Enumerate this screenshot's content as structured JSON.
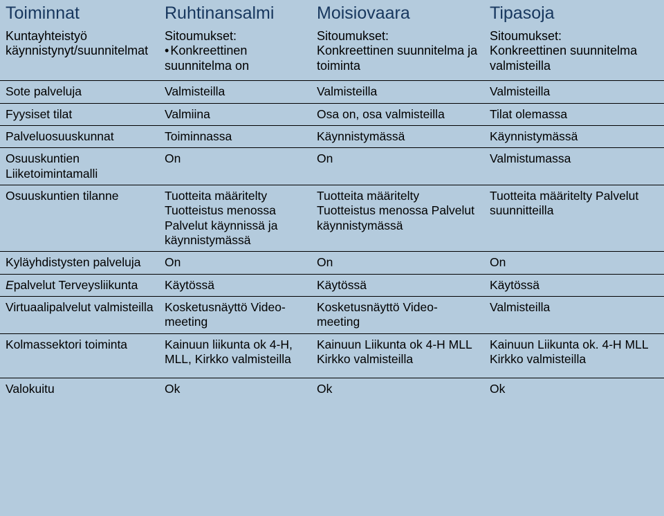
{
  "background_color": "#b4cbdd",
  "header_text_color": "#17375e",
  "border_color": "#000000",
  "font_family": "Arial",
  "header_fontsize": 25,
  "body_fontsize": 17.5,
  "columns": {
    "c0": "Toiminnat",
    "c1": "Ruhtinansalmi",
    "c2": "Moisiovaara",
    "c3": "Tipasoja"
  },
  "subheader": {
    "c0": "Kuntayhteistyö käynnistynyt/suunnitelmat",
    "c1_line1": "Sitoumukset:",
    "c1_line2": "Konkreettinen suunnitelma  on",
    "c2_line1": "Sitoumukset:",
    "c2_line2": "Konkreettinen suunnitelma  ja toiminta",
    "c3_line1": "Sitoumukset:",
    "c3_line2": "Konkreettinen suunnitelma valmisteilla"
  },
  "rows": [
    {
      "c0": "Sote palveluja",
      "c1": "Valmisteilla",
      "c2": "Valmisteilla",
      "c3": "Valmisteilla"
    },
    {
      "c0": "Fyysiset tilat",
      "c1": "Valmiina",
      "c2": "Osa on, osa valmisteilla",
      "c3": "Tilat olemassa"
    },
    {
      "c0": "Palveluosuuskunnat",
      "c1": "Toiminnassa",
      "c2": "Käynnistymässä",
      "c3": "Käynnistymässä"
    },
    {
      "c0": "Osuuskuntien Liiketoimintamalli",
      "c1": "On",
      "c2": "On",
      "c3": "Valmistumassa"
    },
    {
      "c0": "Osuuskuntien tilanne",
      "c1": "Tuotteita määritelty Tuotteistus menossa Palvelut käynnissä ja käynnistymässä",
      "c2": "Tuotteita määritelty Tuotteistus menossa Palvelut käynnistymässä",
      "c3": "Tuotteita määritelty Palvelut suunnitteilla"
    },
    {
      "c0": "Kyläyhdistysten palveluja",
      "c1": "On",
      "c2": "On",
      "c3": "On"
    },
    {
      "c0_pre": "E",
      "c0_rest": "palvelut Terveysliikunta",
      "c1": "Käytössä",
      "c2": "Käytössä",
      "c3": "Käytössä"
    },
    {
      "c0": "Virtuaalipalvelut valmisteilla",
      "c1": "Kosketusnäyttö Video-meeting",
      "c2": "Kosketusnäyttö Video-meeting",
      "c3": "Valmisteilla"
    },
    {
      "c0": "Kolmassektori toiminta",
      "c1": "Kainuun liikunta ok 4-H, MLL, Kirkko valmisteilla",
      "c2": "Kainuun Liikunta ok 4-H MLL  Kirkko valmisteilla",
      "c3": "Kainuun Liikunta ok. 4-H MLL  Kirkko valmisteilla"
    },
    {
      "c0": "Valokuitu",
      "c1": "Ok",
      "c2": "Ok",
      "c3": "Ok",
      "spaced": true
    }
  ]
}
